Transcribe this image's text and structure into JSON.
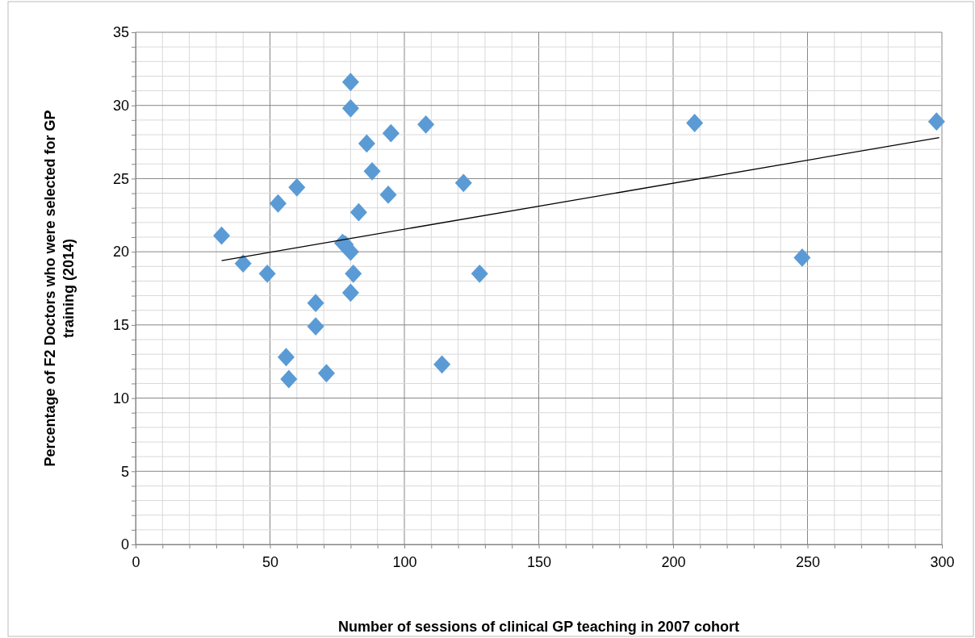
{
  "chart_data": {
    "type": "scatter",
    "xlabel": "Number of sessions of clinical GP teaching in 2007 cohort",
    "ylabel": "Percentage of F2 Doctors who were selected for GP training (2014)",
    "marker": "diamond",
    "grid": true,
    "xlim": [
      0,
      300
    ],
    "ylim": [
      0,
      35
    ],
    "xticks": [
      0,
      {
        "value": 10,
        "label": null
      },
      {
        "value": 20,
        "label": null
      },
      {
        "value": 30,
        "label": null
      },
      {
        "value": 40,
        "label": null
      },
      50,
      {
        "value": 60,
        "label": null
      },
      {
        "value": 70,
        "label": null
      },
      {
        "value": 80,
        "label": null
      },
      {
        "value": 90,
        "label": null
      },
      100,
      {
        "value": 110,
        "label": null
      },
      {
        "value": 120,
        "label": null
      },
      {
        "value": 130,
        "label": null
      },
      {
        "value": 140,
        "label": null
      },
      150,
      {
        "value": 160,
        "label": null
      },
      {
        "value": 170,
        "label": null
      },
      {
        "value": 180,
        "label": null
      },
      {
        "value": 190,
        "label": null
      },
      200,
      {
        "value": 210,
        "label": null
      },
      {
        "value": 220,
        "label": null
      },
      {
        "value": 230,
        "label": null
      },
      {
        "value": 240,
        "label": null
      },
      250,
      {
        "value": 260,
        "label": null
      },
      {
        "value": 270,
        "label": null
      },
      {
        "value": 280,
        "label": null
      },
      {
        "value": 290,
        "label": null
      },
      300
    ],
    "yticks": [
      0,
      {
        "value": 1,
        "label": null
      },
      {
        "value": 2,
        "label": null
      },
      {
        "value": 3,
        "label": null
      },
      {
        "value": 4,
        "label": null
      },
      5,
      {
        "value": 6,
        "label": null
      },
      {
        "value": 7,
        "label": null
      },
      {
        "value": 8,
        "label": null
      },
      {
        "value": 9,
        "label": null
      },
      10,
      {
        "value": 11,
        "label": null
      },
      {
        "value": 12,
        "label": null
      },
      {
        "value": 13,
        "label": null
      },
      {
        "value": 14,
        "label": null
      },
      15,
      {
        "value": 16,
        "label": null
      },
      {
        "value": 17,
        "label": null
      },
      {
        "value": 18,
        "label": null
      },
      {
        "value": 19,
        "label": null
      },
      20,
      {
        "value": 21,
        "label": null
      },
      {
        "value": 22,
        "label": null
      },
      {
        "value": 23,
        "label": null
      },
      {
        "value": 24,
        "label": null
      },
      25,
      {
        "value": 26,
        "label": null
      },
      {
        "value": 27,
        "label": null
      },
      {
        "value": 28,
        "label": null
      },
      {
        "value": 29,
        "label": null
      },
      30,
      {
        "value": 31,
        "label": null
      },
      {
        "value": 32,
        "label": null
      },
      {
        "value": 33,
        "label": null
      },
      {
        "value": 34,
        "label": null
      },
      35
    ],
    "series": [
      {
        "color": "#5b9bd5",
        "x": [
          32,
          40,
          49,
          53,
          60,
          56,
          57,
          67,
          67,
          71,
          77,
          78,
          80,
          80,
          80,
          81,
          80,
          83,
          86,
          88,
          95,
          94,
          108,
          114,
          122,
          128,
          208,
          248,
          298
        ],
        "values": [
          21.1,
          19.2,
          18.5,
          23.3,
          24.4,
          12.8,
          11.3,
          16.5,
          14.9,
          11.7,
          20.6,
          20.5,
          31.6,
          29.8,
          20.0,
          18.5,
          17.2,
          22.7,
          27.4,
          25.5,
          28.1,
          23.9,
          28.7,
          12.3,
          24.7,
          18.5,
          28.8,
          19.6,
          28.9
        ]
      },
      {
        "type": "line",
        "color": "#000000",
        "marker": "none",
        "x": [
          32,
          299
        ],
        "values": [
          19.4,
          27.8
        ]
      }
    ]
  }
}
